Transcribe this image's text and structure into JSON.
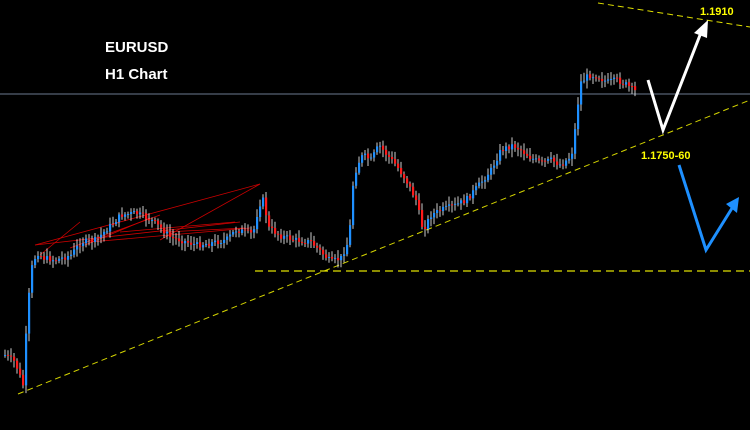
{
  "chart_data": {
    "type": "candlestick",
    "title": "EURUSD",
    "subtitle": "H1 Chart",
    "colors": {
      "background": "#000000",
      "bull": "#1e90ff",
      "bear": "#ff1a1a",
      "wick": "#ffffff",
      "trendline": "#d4d400",
      "levels": "#e0e000",
      "current_price_line": "#6b7a8f",
      "pattern_lines": "#cc0000",
      "up_arrow": "#ffffff",
      "down_arrow": "#1e90ff"
    },
    "annotations": [
      {
        "id": "level-upper",
        "text": "1.1910"
      },
      {
        "id": "level-support",
        "text": "1.1750-60"
      }
    ],
    "grid": false
  }
}
